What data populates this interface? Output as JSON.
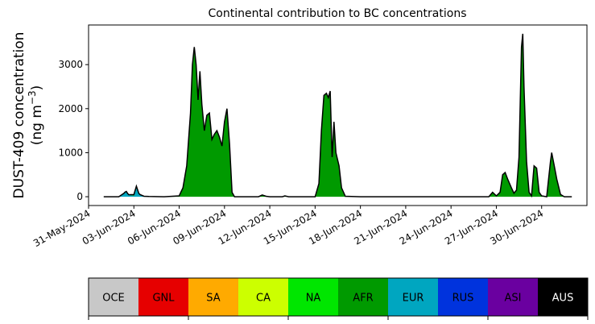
{
  "chart_data": {
    "type": "area",
    "title": "Continental contribution to BC concentrations",
    "ylabel_line1": "DUST-409 concentration",
    "ylabel_line2_prefix": "(ng m",
    "ylabel_superscript": "−3",
    "ylabel_line2_suffix": ")",
    "xlabel": "",
    "xlim": [
      "2024-05-31",
      "2024-07-03"
    ],
    "ylim": [
      -200,
      3900
    ],
    "yticks": [
      0,
      1000,
      2000,
      3000
    ],
    "xticks": [
      "31-May-2024",
      "03-Jun-2024",
      "06-Jun-2024",
      "09-Jun-2024",
      "12-Jun-2024",
      "15-Jun-2024",
      "18-Jun-2024",
      "21-Jun-2024",
      "24-Jun-2024",
      "27-Jun-2024",
      "30-Jun-2024"
    ],
    "stack_order": [
      "EUR",
      "AFR"
    ],
    "series": [
      {
        "name": "EUR",
        "color": "#00a6c0",
        "points": [
          [
            "2024-06-01",
            0
          ],
          [
            "2024-06-02",
            0
          ],
          [
            "2024-06-02T08:00",
            60
          ],
          [
            "2024-06-02T12:00",
            110
          ],
          [
            "2024-06-02T16:00",
            40
          ],
          [
            "2024-06-03",
            20
          ],
          [
            "2024-06-03T04:00",
            200
          ],
          [
            "2024-06-03T08:00",
            60
          ],
          [
            "2024-06-03T16:00",
            10
          ],
          [
            "2024-06-04",
            5
          ],
          [
            "2024-06-05",
            0
          ],
          [
            "2024-07-02",
            0
          ]
        ]
      },
      {
        "name": "AFR",
        "color": "#009a00",
        "points": [
          [
            "2024-06-01",
            0
          ],
          [
            "2024-06-02",
            0
          ],
          [
            "2024-06-02T10:00",
            20
          ],
          [
            "2024-06-02T14:00",
            0
          ],
          [
            "2024-06-03T04:00",
            40
          ],
          [
            "2024-06-03T10:00",
            0
          ],
          [
            "2024-06-05",
            0
          ],
          [
            "2024-06-06",
            20
          ],
          [
            "2024-06-06T06:00",
            200
          ],
          [
            "2024-06-06T12:00",
            700
          ],
          [
            "2024-06-06T18:00",
            1900
          ],
          [
            "2024-06-06T21:00",
            3000
          ],
          [
            "2024-06-07",
            3400
          ],
          [
            "2024-06-07T03:00",
            3000
          ],
          [
            "2024-06-07T06:00",
            2200
          ],
          [
            "2024-06-07T09:00",
            2850
          ],
          [
            "2024-06-07T12:00",
            2100
          ],
          [
            "2024-06-07T16:00",
            1500
          ],
          [
            "2024-06-07T20:00",
            1850
          ],
          [
            "2024-06-08",
            1900
          ],
          [
            "2024-06-08T04:00",
            1300
          ],
          [
            "2024-06-08T08:00",
            1420
          ],
          [
            "2024-06-08T12:00",
            1500
          ],
          [
            "2024-06-08T16:00",
            1350
          ],
          [
            "2024-06-08T20:00",
            1150
          ],
          [
            "2024-06-09",
            1700
          ],
          [
            "2024-06-09T04:00",
            2000
          ],
          [
            "2024-06-09T08:00",
            1200
          ],
          [
            "2024-06-09T12:00",
            100
          ],
          [
            "2024-06-09T16:00",
            0
          ],
          [
            "2024-06-10",
            0
          ],
          [
            "2024-06-11T06:00",
            0
          ],
          [
            "2024-06-11T12:00",
            40
          ],
          [
            "2024-06-11T18:00",
            10
          ],
          [
            "2024-06-12",
            0
          ],
          [
            "2024-06-12T20:00",
            0
          ],
          [
            "2024-06-13",
            20
          ],
          [
            "2024-06-13T06:00",
            0
          ],
          [
            "2024-06-15",
            0
          ],
          [
            "2024-06-15T06:00",
            300
          ],
          [
            "2024-06-15T10:00",
            1500
          ],
          [
            "2024-06-15T14:00",
            2300
          ],
          [
            "2024-06-15T18:00",
            2350
          ],
          [
            "2024-06-15T21:00",
            2250
          ],
          [
            "2024-06-16",
            2400
          ],
          [
            "2024-06-16T03:00",
            900
          ],
          [
            "2024-06-16T06:00",
            1700
          ],
          [
            "2024-06-16T09:00",
            1000
          ],
          [
            "2024-06-16T14:00",
            700
          ],
          [
            "2024-06-16T18:00",
            200
          ],
          [
            "2024-06-17",
            10
          ],
          [
            "2024-06-18",
            0
          ],
          [
            "2024-06-26T12:00",
            0
          ],
          [
            "2024-06-26T18:00",
            100
          ],
          [
            "2024-06-27",
            20
          ],
          [
            "2024-06-27T06:00",
            100
          ],
          [
            "2024-06-27T10:00",
            500
          ],
          [
            "2024-06-27T14:00",
            550
          ],
          [
            "2024-06-27T18:00",
            400
          ],
          [
            "2024-06-28",
            200
          ],
          [
            "2024-06-28T04:00",
            80
          ],
          [
            "2024-06-28T08:00",
            150
          ],
          [
            "2024-06-28T12:00",
            900
          ],
          [
            "2024-06-28T16:00",
            3400
          ],
          [
            "2024-06-28T18:00",
            3700
          ],
          [
            "2024-06-28T20:00",
            2500
          ],
          [
            "2024-06-29",
            800
          ],
          [
            "2024-06-29T04:00",
            100
          ],
          [
            "2024-06-29T08:00",
            20
          ],
          [
            "2024-06-29T12:00",
            700
          ],
          [
            "2024-06-29T16:00",
            650
          ],
          [
            "2024-06-29T20:00",
            100
          ],
          [
            "2024-06-30",
            20
          ],
          [
            "2024-06-30T08:00",
            0
          ],
          [
            "2024-06-30T14:00",
            800
          ],
          [
            "2024-06-30T16:00",
            1000
          ],
          [
            "2024-06-30T20:00",
            700
          ],
          [
            "2024-07-01",
            400
          ],
          [
            "2024-07-01T06:00",
            50
          ],
          [
            "2024-07-01T12:00",
            0
          ],
          [
            "2024-07-02",
            0
          ]
        ]
      }
    ],
    "legend": [
      {
        "label": "OCE",
        "color": "#c8c8c8",
        "text_color": "#000000"
      },
      {
        "label": "GNL",
        "color": "#e60000",
        "text_color": "#000000"
      },
      {
        "label": "SA",
        "color": "#ffaa00",
        "text_color": "#000000"
      },
      {
        "label": "CA",
        "color": "#ccff00",
        "text_color": "#000000"
      },
      {
        "label": "NA",
        "color": "#00e600",
        "text_color": "#000000"
      },
      {
        "label": "AFR",
        "color": "#009a00",
        "text_color": "#000000"
      },
      {
        "label": "EUR",
        "color": "#00a6c0",
        "text_color": "#000000"
      },
      {
        "label": "RUS",
        "color": "#0033dd",
        "text_color": "#000000"
      },
      {
        "label": "ASI",
        "color": "#6a00a0",
        "text_color": "#000000"
      },
      {
        "label": "AUS",
        "color": "#000000",
        "text_color": "#ffffff"
      }
    ],
    "legend_placement": "bottom",
    "grid": false
  }
}
